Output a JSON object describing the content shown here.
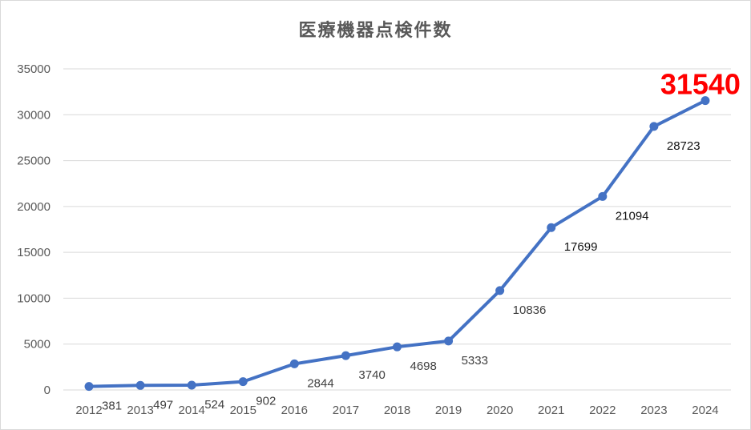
{
  "chart_data": {
    "type": "line",
    "title": "医療機器点検件数",
    "xlabel": "",
    "ylabel": "",
    "categories": [
      "2012",
      "2013",
      "2014",
      "2015",
      "2016",
      "2017",
      "2018",
      "2019",
      "2020",
      "2021",
      "2022",
      "2023",
      "2024"
    ],
    "series": [
      {
        "values": [
          381,
          497,
          524,
          902,
          2844,
          3740,
          4698,
          5333,
          10836,
          17699,
          21094,
          28723,
          31540
        ]
      }
    ],
    "ylim": [
      0,
      35000
    ],
    "yticks": [
      0,
      5000,
      10000,
      15000,
      20000,
      25000,
      30000,
      35000
    ],
    "grid": "horizontal",
    "legend": "none",
    "highlight_label": "31540"
  },
  "colors": {
    "line": "#4472c4",
    "gridline": "#d9d9d9",
    "highlight_label": "#ff0000"
  }
}
